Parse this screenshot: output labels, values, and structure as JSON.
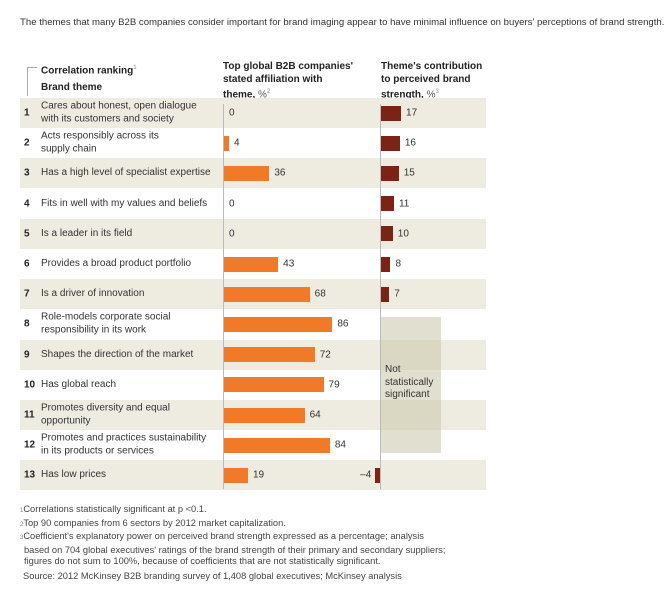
{
  "title": "The themes that many B2B companies consider important for brand imaging appear to have minimal influence on buyers' perceptions of brand strength.",
  "headers": {
    "ranking": "Correlation ranking",
    "ranking_note": "1",
    "theme": "Brand theme",
    "affiliation_lines": [
      "Top global B2B companies'",
      "stated affiliation with",
      "theme,"
    ],
    "affiliation_unit": "%",
    "affiliation_note": "2",
    "contribution_lines": [
      "Theme's contribution",
      "to perceived brand",
      "strength,"
    ],
    "contribution_unit": "%",
    "contribution_note": "3"
  },
  "colors": {
    "affiliation": "#f07a28",
    "contribution": "#7b2416",
    "row_shade": "#eeebe1",
    "not_significant_box": "#dcd9c6"
  },
  "not_significant_label": "Not statistically significant",
  "chart_data": {
    "type": "bar",
    "orientation": "horizontal",
    "categories": [
      "Cares about honest, open dialogue with its customers and society",
      "Acts responsibly across its supply chain",
      "Has a high level of specialist expertise",
      "Fits in well with my values and beliefs",
      "Is a leader in its field",
      "Provides a broad product portfolio",
      "Is a driver of innovation",
      "Role-models corporate social responsibility in its work",
      "Shapes the direction of the market",
      "Has global reach",
      "Promotes diversity and equal opportunity",
      "Promotes and practices sustainability in its products or services",
      "Has low prices"
    ],
    "theme_lines": [
      [
        "Cares about honest, open dialogue",
        "with its customers and society"
      ],
      [
        "Acts responsibly across its",
        "supply chain"
      ],
      [
        "Has a high level of specialist expertise"
      ],
      [
        "Fits in well with my values and beliefs"
      ],
      [
        "Is a leader in its field"
      ],
      [
        "Provides a broad product portfolio"
      ],
      [
        "Is a driver of innovation"
      ],
      [
        "Role-models corporate social",
        "responsibility in its work"
      ],
      [
        "Shapes the direction of the market"
      ],
      [
        "Has global reach"
      ],
      [
        "Promotes diversity and equal",
        "opportunity"
      ],
      [
        "Promotes and practices sustainability",
        "in its products or services"
      ],
      [
        "Has low prices"
      ]
    ],
    "ranks": [
      "1",
      "2",
      "3",
      "4",
      "5",
      "6",
      "7",
      "8",
      "9",
      "10",
      "11",
      "12",
      "13"
    ],
    "series": [
      {
        "name": "Top global B2B companies' stated affiliation with theme, %",
        "values": [
          0,
          4,
          36,
          0,
          0,
          43,
          68,
          86,
          72,
          79,
          64,
          84,
          19
        ]
      },
      {
        "name": "Theme's contribution to perceived brand strength, %",
        "values": [
          17,
          16,
          15,
          11,
          10,
          8,
          7,
          null,
          null,
          null,
          null,
          null,
          -4
        ]
      }
    ],
    "value_labels": {
      "affiliation": [
        "0",
        "4",
        "36",
        "0",
        "0",
        "43",
        "68",
        "86",
        "72",
        "79",
        "64",
        "84",
        "19"
      ],
      "contribution": [
        "17",
        "16",
        "15",
        "11",
        "10",
        "8",
        "7",
        "",
        "",
        "",
        "",
        "",
        "–4"
      ]
    }
  },
  "footnotes": [
    {
      "mark": "1",
      "text": "Correlations statistically significant at p <0.1."
    },
    {
      "mark": "2",
      "text": "Top 90 companies from 6 sectors by 2012 market capitalization."
    },
    {
      "mark": "3",
      "lines": [
        "Coefficient's explanatory power on perceived brand strength expressed as a percentage; analysis",
        "based on 704 global executives' ratings of the brand strength of their primary and secondary suppliers;",
        "figures do not sum to 100%, because of coefficients that are not statistically significant."
      ]
    }
  ],
  "source": "Source: 2012 McKinsey B2B branding survey of 1,408 global executives; McKinsey analysis"
}
